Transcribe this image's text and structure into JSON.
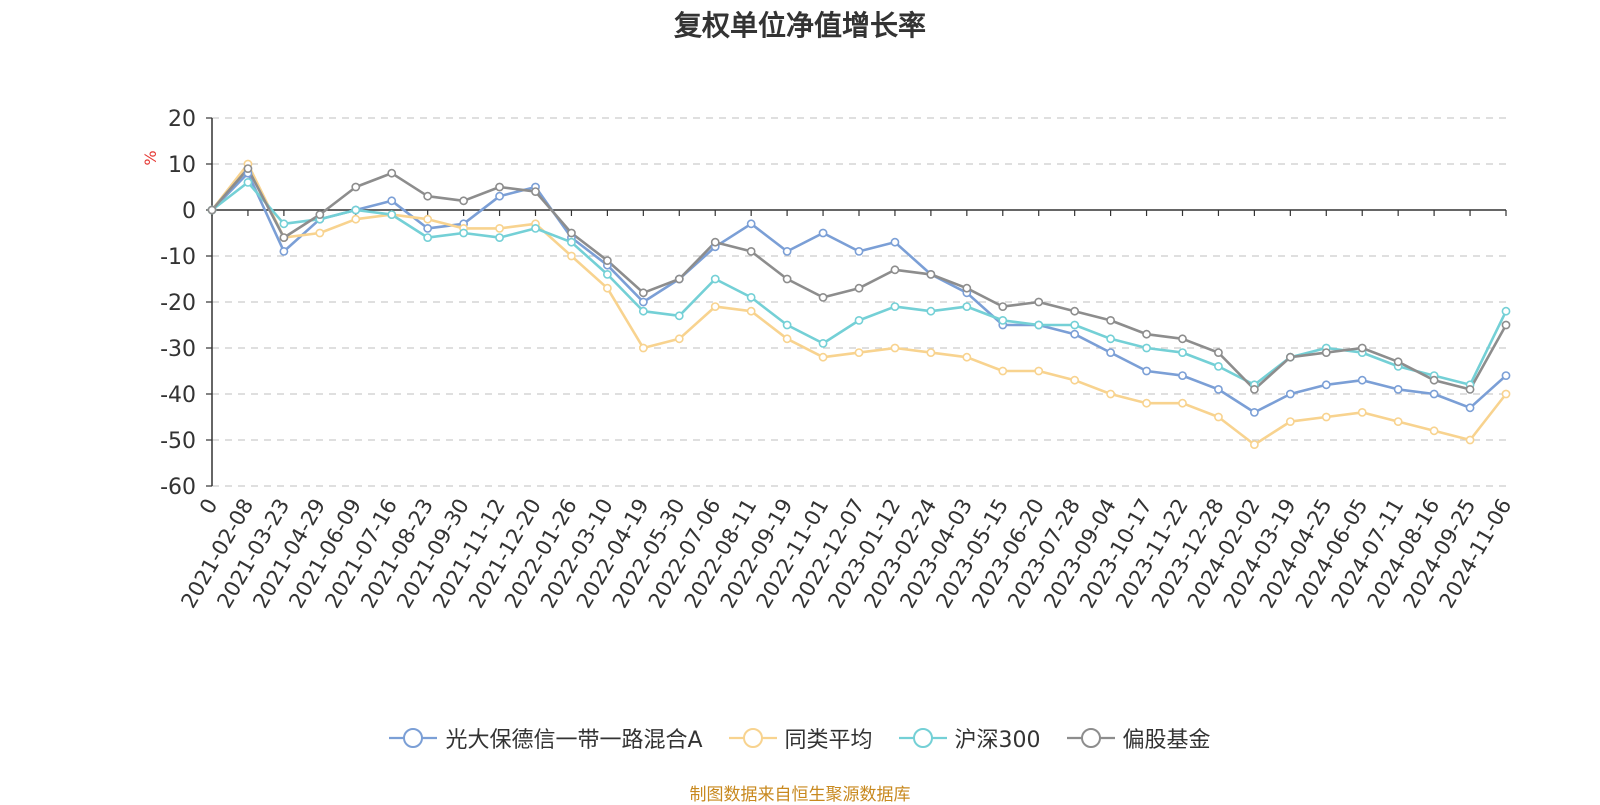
{
  "chart_data": {
    "type": "line",
    "title": "复权单位净值增长率",
    "ylabel": "%",
    "xlabel": "",
    "ylim": [
      -60,
      20
    ],
    "yticks": [
      20,
      10,
      0,
      -10,
      -20,
      -30,
      -40,
      -50,
      -60
    ],
    "grid": true,
    "legend_position": "bottom-center",
    "categories": [
      "0",
      "2021-02-08",
      "2021-03-23",
      "2021-04-29",
      "2021-06-09",
      "2021-07-16",
      "2021-08-23",
      "2021-09-30",
      "2021-11-12",
      "2021-12-20",
      "2022-01-26",
      "2022-03-10",
      "2022-04-19",
      "2022-05-30",
      "2022-07-06",
      "2022-08-11",
      "2022-09-19",
      "2022-11-01",
      "2022-12-07",
      "2023-01-12",
      "2023-02-24",
      "2023-04-03",
      "2023-05-15",
      "2023-06-20",
      "2023-07-28",
      "2023-09-04",
      "2023-10-17",
      "2023-11-22",
      "2023-12-28",
      "2024-02-02",
      "2024-03-19",
      "2024-04-25",
      "2024-06-05",
      "2024-07-11",
      "2024-08-16",
      "2024-09-25",
      "2024-11-06"
    ],
    "series": [
      {
        "name": "光大保德信一带一路混合A",
        "color": "#7b9fd6",
        "values": [
          0,
          8,
          -9,
          -2,
          0,
          2,
          -4,
          -3,
          3,
          5,
          -6,
          -12,
          -20,
          -15,
          -8,
          -3,
          -9,
          -5,
          -9,
          -7,
          -14,
          -18,
          -25,
          -25,
          -27,
          -31,
          -35,
          -36,
          -39,
          -44,
          -40,
          -38,
          -37,
          -39,
          -40,
          -43,
          -36
        ]
      },
      {
        "name": "同类平均",
        "color": "#f8d38f",
        "values": [
          0,
          10,
          -6,
          -5,
          -2,
          -1,
          -2,
          -4,
          -4,
          -3,
          -10,
          -17,
          -30,
          -28,
          -21,
          -22,
          -28,
          -32,
          -31,
          -30,
          -31,
          -32,
          -35,
          -35,
          -37,
          -40,
          -42,
          -42,
          -45,
          -51,
          -46,
          -45,
          -44,
          -46,
          -48,
          -50,
          -40
        ]
      },
      {
        "name": "沪深300",
        "color": "#74d0d6",
        "values": [
          0,
          6,
          -3,
          -2,
          0,
          -1,
          -6,
          -5,
          -6,
          -4,
          -7,
          -14,
          -22,
          -23,
          -15,
          -19,
          -25,
          -29,
          -24,
          -21,
          -22,
          -21,
          -24,
          -25,
          -25,
          -28,
          -30,
          -31,
          -34,
          -38,
          -32,
          -30,
          -31,
          -34,
          -36,
          -38,
          -22
        ]
      },
      {
        "name": "偏股基金",
        "color": "#8d8d8d",
        "values": [
          0,
          9,
          -6,
          -1,
          5,
          8,
          3,
          2,
          5,
          4,
          -5,
          -11,
          -18,
          -15,
          -7,
          -9,
          -15,
          -19,
          -17,
          -13,
          -14,
          -17,
          -21,
          -20,
          -22,
          -24,
          -27,
          -28,
          -31,
          -39,
          -32,
          -31,
          -30,
          -33,
          -37,
          -39,
          -25
        ]
      }
    ]
  },
  "footer": {
    "source_note": "制图数据来自恒生聚源数据库"
  }
}
